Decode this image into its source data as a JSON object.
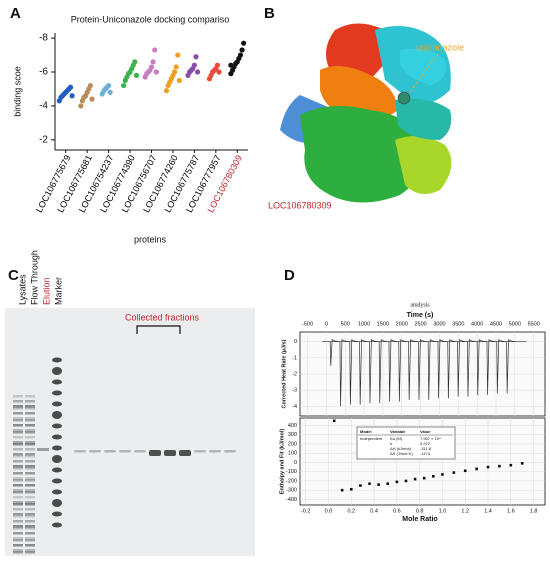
{
  "panel_letters": [
    "A",
    "B",
    "C",
    "D"
  ],
  "chart_data": [
    {
      "type": "strip",
      "title": "Protein-Uniconazole docking compariso",
      "y_label": "binding scoe",
      "x_label": "proteins",
      "categories": [
        "LOC106775679",
        "LOC106775681",
        "LOC106754237",
        "LOC106774390",
        "LOC106756707",
        "LOC106774260",
        "LOC106775787",
        "LOC106777957",
        "LOC106780309"
      ],
      "category_label_colors": [
        "#000000",
        "#000000",
        "#000000",
        "#000000",
        "#000000",
        "#000000",
        "#000000",
        "#000000",
        "#c0272d"
      ],
      "colors": [
        "#1f5fbf",
        "#b98c5a",
        "#6ab0d8",
        "#3cb34a",
        "#c77dc0",
        "#f0a020",
        "#8a4fa8",
        "#e84c3c",
        "#111111"
      ],
      "values": [
        [
          -4.3,
          -4.5,
          -4.6,
          -4.7,
          -4.8,
          -4.9,
          -5.0,
          -5.1,
          -4.6
        ],
        [
          -4.0,
          -4.3,
          -4.5,
          -4.6,
          -4.8,
          -5.0,
          -5.2,
          -4.4
        ],
        [
          -4.7,
          -4.9,
          -5.0,
          -5.1,
          -5.2,
          -4.8
        ],
        [
          -5.2,
          -5.5,
          -5.7,
          -5.9,
          -6.0,
          -6.2,
          -6.4,
          -6.6,
          -5.8
        ],
        [
          -5.7,
          -5.9,
          -6.0,
          -6.1,
          -6.3,
          -6.6,
          -7.3,
          -6.0
        ],
        [
          -4.9,
          -5.2,
          -5.4,
          -5.6,
          -5.8,
          -6.0,
          -6.3,
          -7.0,
          -5.5
        ],
        [
          -5.8,
          -6.0,
          -6.1,
          -6.2,
          -6.4,
          -6.9,
          -6.0
        ],
        [
          -5.6,
          -5.8,
          -6.0,
          -6.1,
          -6.2,
          -6.4,
          -6.0
        ],
        [
          -5.9,
          -6.1,
          -6.3,
          -6.5,
          -6.6,
          -6.8,
          -7.0,
          -7.3,
          -7.7,
          -6.4
        ]
      ],
      "ylim": [
        -1.4,
        -8.3
      ],
      "yticks": [
        -8,
        -6,
        -4,
        -2
      ]
    },
    {
      "type": "thermogram",
      "title": "analysis",
      "x_label": "Time (s)",
      "y_label": "Corrected Heat Rate (µJ/s)",
      "x": [
        100,
        360,
        620,
        880,
        1140,
        1400,
        1660,
        1920,
        2180,
        2440,
        2700,
        2960,
        3220,
        3480,
        3740,
        4000,
        4260,
        4520,
        4780
      ],
      "values": [
        -1.5,
        -4.0,
        -3.9,
        -3.9,
        -3.8,
        -3.8,
        -3.7,
        -3.7,
        -3.6,
        -3.6,
        -3.6,
        -3.5,
        -3.5,
        -3.4,
        -3.4,
        -3.3,
        -3.3,
        -3.2,
        -3.2
      ],
      "color": "#333333",
      "xlim": [
        -700,
        5800
      ],
      "xticks": [
        -500,
        0,
        500,
        1000,
        1500,
        2000,
        2500,
        3000,
        3500,
        4000,
        4500,
        5000,
        5500
      ],
      "ylim": [
        -4.6,
        0.6
      ],
      "yticks": [
        0,
        -1,
        -2,
        -3,
        -4
      ]
    },
    {
      "type": "scatter",
      "x_label": "Mole Ratio",
      "y_label": "Enthalpy and Fit (kJ/mol)",
      "x": [
        0.05,
        0.12,
        0.2,
        0.28,
        0.36,
        0.44,
        0.52,
        0.6,
        0.68,
        0.76,
        0.84,
        0.92,
        1.0,
        1.1,
        1.2,
        1.3,
        1.4,
        1.5,
        1.6,
        1.7
      ],
      "values": [
        450,
        -300,
        -290,
        -250,
        -230,
        -240,
        -230,
        -210,
        -200,
        -180,
        -170,
        -150,
        -130,
        -110,
        -90,
        -70,
        -50,
        -40,
        -30,
        -10
      ],
      "color": "#111111",
      "xlim": [
        -0.25,
        1.9
      ],
      "xticks": [
        -0.2,
        {
          "value": 0,
          "label": "0.0"
        },
        0.2,
        0.4,
        0.6,
        0.8,
        {
          "value": 1,
          "label": "1.0"
        },
        1.2,
        1.4,
        1.6,
        1.8
      ],
      "ylim": [
        -460,
        480
      ],
      "yticks": [
        400,
        300,
        200,
        100,
        0,
        -100,
        -200,
        -300,
        -400
      ],
      "inset": {
        "header": [
          "Model",
          "Variable",
          "Value"
        ],
        "rows": [
          [
            "Independent",
            "Ka (M)",
            "7.957 × 10⁴"
          ],
          [
            "",
            "n",
            "0.972"
          ],
          [
            "",
            "ΔH (kJ/mol)",
            "-311.8"
          ],
          [
            "",
            "ΔS (J/mol·K)",
            "-1174"
          ]
        ]
      }
    }
  ],
  "structure": {
    "ligand_label": "uniconazole",
    "protein_label": "LOC106780309"
  },
  "gel": {
    "lane_labels": [
      "Lysates",
      "Flow Through",
      "Elution",
      "Marker"
    ],
    "fractions_label": "Collected fractions"
  }
}
